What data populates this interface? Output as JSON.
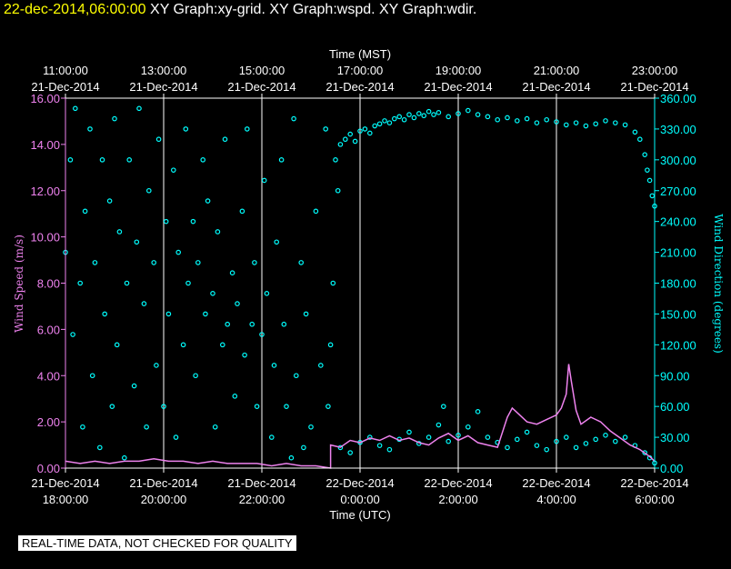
{
  "header": {
    "timestamp": "22-dec-2014,06:00:00",
    "titles": "XY Graph:xy-grid.  XY Graph:wspd.  XY Graph:wdir."
  },
  "quality_note": "REAL-TIME DATA, NOT CHECKED FOR QUALITY",
  "chart_data": {
    "type": "scatter",
    "top_axis_title": "Time (MST)",
    "bottom_axis_title": "Time (UTC)",
    "left_axis_title": "Wind Speed (m/s)",
    "right_axis_title": "Wind Direction (degrees)",
    "x_range_hours": [
      0,
      12
    ],
    "left_ylim": [
      0,
      16
    ],
    "right_ylim": [
      0,
      360
    ],
    "left_ticks": [
      "0.00",
      "2.00",
      "4.00",
      "6.00",
      "8.00",
      "10.00",
      "12.00",
      "14.00",
      "16.00"
    ],
    "right_ticks": [
      "0.00",
      "30.00",
      "60.00",
      "90.00",
      "120.00",
      "150.00",
      "180.00",
      "210.00",
      "240.00",
      "270.00",
      "300.00",
      "330.00",
      "360.00"
    ],
    "top_ticks": [
      {
        "h": 0,
        "time": "11:00:00",
        "date": "21-Dec-2014"
      },
      {
        "h": 2,
        "time": "13:00:00",
        "date": "21-Dec-2014"
      },
      {
        "h": 4,
        "time": "15:00:00",
        "date": "21-Dec-2014"
      },
      {
        "h": 6,
        "time": "17:00:00",
        "date": "21-Dec-2014"
      },
      {
        "h": 8,
        "time": "19:00:00",
        "date": "21-Dec-2014"
      },
      {
        "h": 10,
        "time": "21:00:00",
        "date": "21-Dec-2014"
      },
      {
        "h": 12,
        "time": "23:00:00",
        "date": "21-Dec-2014"
      }
    ],
    "bottom_ticks": [
      {
        "h": 0,
        "date": "21-Dec-2014",
        "time": "18:00:00"
      },
      {
        "h": 2,
        "date": "21-Dec-2014",
        "time": "20:00:00"
      },
      {
        "h": 4,
        "date": "21-Dec-2014",
        "time": "22:00:00"
      },
      {
        "h": 6,
        "date": "22-Dec-2014",
        "time": "0:00:00"
      },
      {
        "h": 8,
        "date": "22-Dec-2014",
        "time": "2:00:00"
      },
      {
        "h": 10,
        "date": "22-Dec-2014",
        "time": "4:00:00"
      },
      {
        "h": 12,
        "date": "22-Dec-2014",
        "time": "6:00:00"
      }
    ],
    "grid": true,
    "colors": {
      "speed": "#ee82ee",
      "direction": "#00ffff",
      "grid": "#ffffff",
      "axis": "#ffffff"
    },
    "series": [
      {
        "name": "Wind Speed (m/s)",
        "axis": "left",
        "style": "line",
        "points": [
          [
            0.0,
            0.3
          ],
          [
            0.3,
            0.2
          ],
          [
            0.6,
            0.3
          ],
          [
            0.9,
            0.2
          ],
          [
            1.2,
            0.3
          ],
          [
            1.5,
            0.3
          ],
          [
            1.8,
            0.4
          ],
          [
            2.1,
            0.3
          ],
          [
            2.4,
            0.3
          ],
          [
            2.7,
            0.2
          ],
          [
            3.0,
            0.3
          ],
          [
            3.3,
            0.2
          ],
          [
            3.6,
            0.2
          ],
          [
            3.9,
            0.2
          ],
          [
            4.2,
            0.1
          ],
          [
            4.5,
            0.2
          ],
          [
            4.8,
            0.1
          ],
          [
            5.1,
            0.1
          ],
          [
            5.4,
            0.0
          ],
          [
            5.4,
            1.0
          ],
          [
            5.6,
            0.9
          ],
          [
            5.8,
            1.2
          ],
          [
            6.0,
            1.1
          ],
          [
            6.2,
            1.3
          ],
          [
            6.4,
            1.2
          ],
          [
            6.6,
            1.4
          ],
          [
            6.8,
            1.2
          ],
          [
            7.0,
            1.3
          ],
          [
            7.2,
            1.1
          ],
          [
            7.4,
            1.0
          ],
          [
            7.6,
            1.3
          ],
          [
            7.8,
            1.5
          ],
          [
            8.0,
            1.2
          ],
          [
            8.2,
            1.4
          ],
          [
            8.4,
            1.1
          ],
          [
            8.6,
            1.0
          ],
          [
            8.8,
            0.9
          ],
          [
            9.0,
            2.2
          ],
          [
            9.1,
            2.6
          ],
          [
            9.2,
            2.4
          ],
          [
            9.4,
            2.0
          ],
          [
            9.6,
            1.9
          ],
          [
            9.8,
            2.1
          ],
          [
            10.0,
            2.3
          ],
          [
            10.1,
            2.6
          ],
          [
            10.2,
            3.2
          ],
          [
            10.25,
            4.5
          ],
          [
            10.3,
            3.8
          ],
          [
            10.4,
            2.5
          ],
          [
            10.5,
            1.9
          ],
          [
            10.7,
            2.2
          ],
          [
            10.9,
            2.0
          ],
          [
            11.1,
            1.6
          ],
          [
            11.3,
            1.3
          ],
          [
            11.5,
            1.0
          ],
          [
            11.7,
            0.8
          ],
          [
            11.9,
            0.5
          ],
          [
            12.0,
            0.3
          ]
        ]
      },
      {
        "name": "Wind Direction (degrees)",
        "axis": "right",
        "style": "circles",
        "points": [
          [
            0.0,
            210
          ],
          [
            0.1,
            300
          ],
          [
            0.15,
            130
          ],
          [
            0.2,
            350
          ],
          [
            0.3,
            180
          ],
          [
            0.35,
            40
          ],
          [
            0.4,
            250
          ],
          [
            0.5,
            330
          ],
          [
            0.55,
            90
          ],
          [
            0.6,
            200
          ],
          [
            0.7,
            20
          ],
          [
            0.75,
            300
          ],
          [
            0.8,
            150
          ],
          [
            0.9,
            260
          ],
          [
            0.95,
            60
          ],
          [
            1.0,
            340
          ],
          [
            1.05,
            120
          ],
          [
            1.1,
            230
          ],
          [
            1.2,
            10
          ],
          [
            1.25,
            180
          ],
          [
            1.3,
            300
          ],
          [
            1.4,
            80
          ],
          [
            1.45,
            220
          ],
          [
            1.5,
            350
          ],
          [
            1.6,
            160
          ],
          [
            1.65,
            40
          ],
          [
            1.7,
            270
          ],
          [
            1.8,
            200
          ],
          [
            1.85,
            100
          ],
          [
            1.9,
            320
          ],
          [
            2.0,
            60
          ],
          [
            2.05,
            240
          ],
          [
            2.1,
            150
          ],
          [
            2.2,
            290
          ],
          [
            2.25,
            30
          ],
          [
            2.3,
            210
          ],
          [
            2.4,
            120
          ],
          [
            2.45,
            330
          ],
          [
            2.5,
            180
          ],
          [
            2.6,
            240
          ],
          [
            2.65,
            90
          ],
          [
            2.7,
            200
          ],
          [
            2.8,
            300
          ],
          [
            2.85,
            150
          ],
          [
            2.9,
            260
          ],
          [
            3.0,
            170
          ],
          [
            3.05,
            40
          ],
          [
            3.1,
            230
          ],
          [
            3.2,
            120
          ],
          [
            3.25,
            320
          ],
          [
            3.3,
            140
          ],
          [
            3.4,
            190
          ],
          [
            3.45,
            70
          ],
          [
            3.5,
            160
          ],
          [
            3.6,
            250
          ],
          [
            3.65,
            110
          ],
          [
            3.7,
            330
          ],
          [
            3.8,
            140
          ],
          [
            3.85,
            200
          ],
          [
            3.9,
            60
          ],
          [
            4.0,
            130
          ],
          [
            4.05,
            280
          ],
          [
            4.1,
            170
          ],
          [
            4.2,
            30
          ],
          [
            4.25,
            100
          ],
          [
            4.3,
            220
          ],
          [
            4.4,
            300
          ],
          [
            4.45,
            140
          ],
          [
            4.5,
            60
          ],
          [
            4.6,
            10
          ],
          [
            4.65,
            340
          ],
          [
            4.7,
            90
          ],
          [
            4.8,
            200
          ],
          [
            4.85,
            20
          ],
          [
            4.9,
            150
          ],
          [
            5.0,
            40
          ],
          [
            5.1,
            250
          ],
          [
            5.2,
            100
          ],
          [
            5.3,
            330
          ],
          [
            5.35,
            60
          ],
          [
            5.4,
            120
          ],
          [
            5.45,
            180
          ],
          [
            5.5,
            300
          ],
          [
            5.55,
            270
          ],
          [
            5.6,
            315
          ],
          [
            5.7,
            320
          ],
          [
            5.8,
            325
          ],
          [
            5.9,
            318
          ],
          [
            6.0,
            328
          ],
          [
            6.1,
            330
          ],
          [
            6.2,
            326
          ],
          [
            6.3,
            333
          ],
          [
            6.4,
            335
          ],
          [
            6.5,
            338
          ],
          [
            6.6,
            336
          ],
          [
            6.7,
            340
          ],
          [
            6.8,
            342
          ],
          [
            6.9,
            339
          ],
          [
            7.0,
            344
          ],
          [
            7.1,
            341
          ],
          [
            7.2,
            345
          ],
          [
            7.3,
            343
          ],
          [
            7.4,
            347
          ],
          [
            7.5,
            344
          ],
          [
            7.6,
            346
          ],
          [
            7.8,
            342
          ],
          [
            8.0,
            345
          ],
          [
            8.2,
            348
          ],
          [
            8.4,
            344
          ],
          [
            8.6,
            342
          ],
          [
            8.8,
            339
          ],
          [
            9.0,
            341
          ],
          [
            9.2,
            338
          ],
          [
            9.4,
            340
          ],
          [
            9.6,
            336
          ],
          [
            9.8,
            339
          ],
          [
            10.0,
            337
          ],
          [
            10.2,
            334
          ],
          [
            10.4,
            336
          ],
          [
            10.6,
            333
          ],
          [
            10.8,
            335
          ],
          [
            11.0,
            338
          ],
          [
            11.2,
            336
          ],
          [
            11.4,
            334
          ],
          [
            11.6,
            327
          ],
          [
            11.7,
            320
          ],
          [
            11.8,
            305
          ],
          [
            11.85,
            290
          ],
          [
            11.9,
            280
          ],
          [
            11.95,
            265
          ],
          [
            12.0,
            255
          ],
          [
            5.6,
            20
          ],
          [
            5.8,
            15
          ],
          [
            6.0,
            25
          ],
          [
            6.2,
            30
          ],
          [
            6.4,
            22
          ],
          [
            6.6,
            18
          ],
          [
            6.8,
            28
          ],
          [
            7.0,
            35
          ],
          [
            7.2,
            24
          ],
          [
            7.4,
            30
          ],
          [
            7.6,
            42
          ],
          [
            7.7,
            60
          ],
          [
            7.8,
            26
          ],
          [
            8.0,
            32
          ],
          [
            8.2,
            40
          ],
          [
            8.4,
            55
          ],
          [
            8.6,
            30
          ],
          [
            8.8,
            25
          ],
          [
            9.0,
            20
          ],
          [
            9.2,
            28
          ],
          [
            9.4,
            35
          ],
          [
            9.6,
            22
          ],
          [
            9.8,
            18
          ],
          [
            10.0,
            26
          ],
          [
            10.2,
            30
          ],
          [
            10.4,
            20
          ],
          [
            10.6,
            24
          ],
          [
            10.8,
            28
          ],
          [
            11.0,
            32
          ],
          [
            11.2,
            26
          ],
          [
            11.4,
            30
          ],
          [
            11.6,
            22
          ],
          [
            11.8,
            15
          ],
          [
            11.9,
            10
          ],
          [
            12.0,
            5
          ]
        ]
      }
    ]
  }
}
